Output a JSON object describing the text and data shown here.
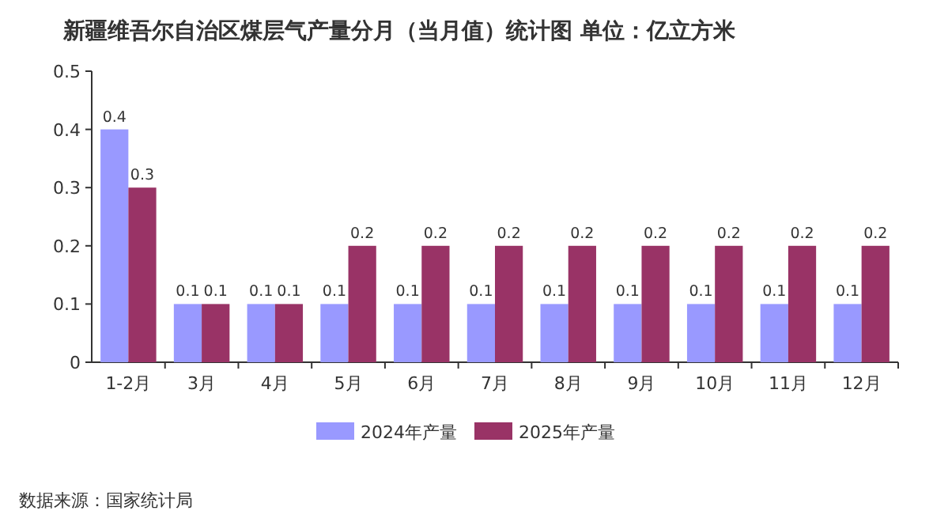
{
  "chart_data": {
    "type": "bar",
    "title": "新疆维吾尔自治区煤层气产量分月（当月值）统计图  单位：亿立方米",
    "categories": [
      "1-2月",
      "3月",
      "4月",
      "5月",
      "6月",
      "7月",
      "8月",
      "9月",
      "10月",
      "11月",
      "12月"
    ],
    "series": [
      {
        "name": "2024年产量",
        "color": "#9999ff",
        "values": [
          0.4,
          0.1,
          0.1,
          0.1,
          0.1,
          0.1,
          0.1,
          0.1,
          0.1,
          0.1,
          0.1
        ]
      },
      {
        "name": "2025年产量",
        "color": "#993366",
        "values": [
          0.3,
          0.1,
          0.1,
          0.2,
          0.2,
          0.2,
          0.2,
          0.2,
          0.2,
          0.2,
          0.2
        ]
      }
    ],
    "ylim": [
      0,
      0.5
    ],
    "yticks": [
      0,
      0.1,
      0.2,
      0.3,
      0.4,
      0.5
    ],
    "data_labels": true,
    "legend": "bottom",
    "grid": false,
    "annotations": [
      "数据来源：国家统计局"
    ]
  }
}
